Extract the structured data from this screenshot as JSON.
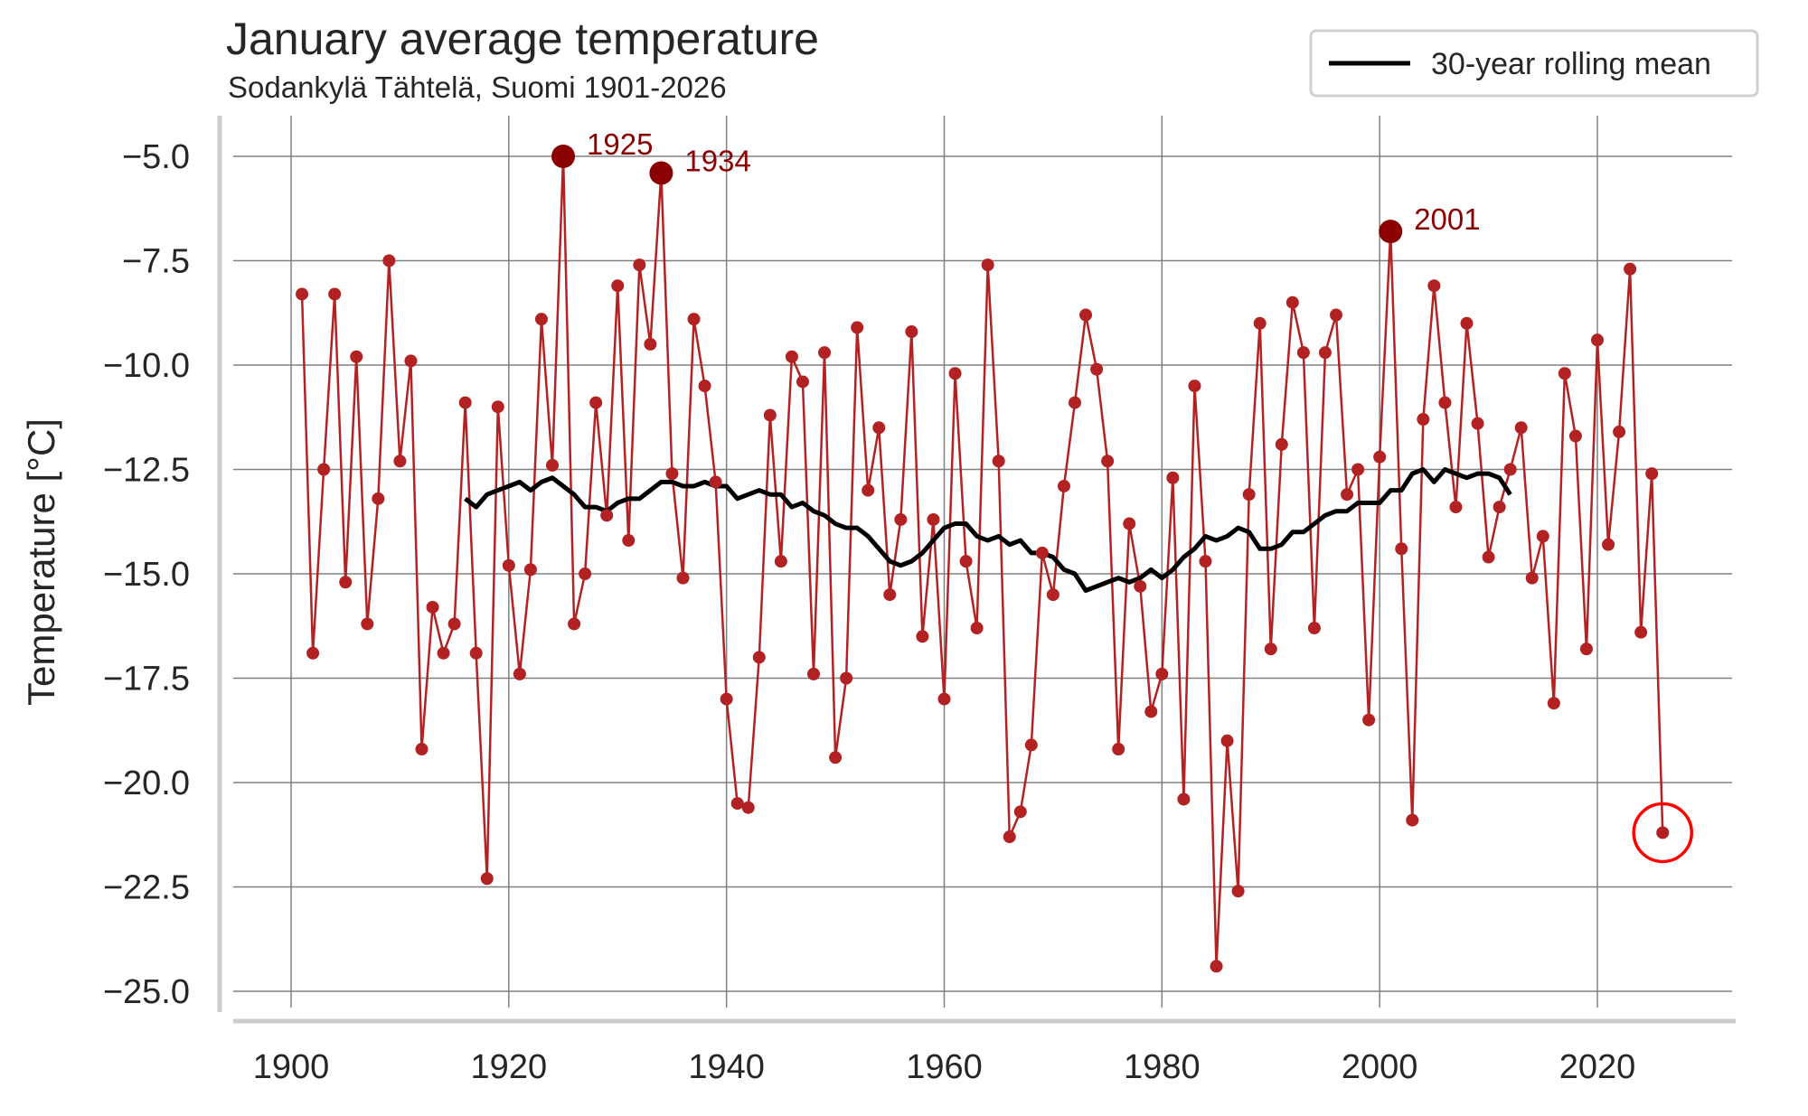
{
  "chart_data": {
    "type": "line",
    "title": "January average temperature",
    "subtitle": "Sodankylä Tähtelä, Suomi 1901-2026",
    "xlabel": "",
    "ylabel": "Temperature [°C]",
    "xlim": [
      1895,
      2032
    ],
    "ylim": [
      -25.6,
      -4.0
    ],
    "xticks": [
      1900,
      1920,
      1940,
      1960,
      1980,
      2000,
      2020
    ],
    "xtick_labels": [
      "1900",
      "1920",
      "1940",
      "1960",
      "1980",
      "2000",
      "2020"
    ],
    "yticks": [
      -5.0,
      -7.5,
      -10.0,
      -12.5,
      -15.0,
      -17.5,
      -20.0,
      -22.5,
      -25.0
    ],
    "ytick_labels": [
      "−5.0",
      "−7.5",
      "−10.0",
      "−12.5",
      "−15.0",
      "−17.5",
      "−20.0",
      "−22.5",
      "−25.0"
    ],
    "grid": true,
    "legend": {
      "placement": "top-right",
      "entries": [
        "30-year rolling mean"
      ]
    },
    "colors": {
      "series": "#b22222",
      "highlight": "#8b0000",
      "rolling": "#000000",
      "circle": "#ff0000",
      "grid": "#808080"
    },
    "series": [
      {
        "name": "January average temperature",
        "x": [
          1901,
          1902,
          1903,
          1904,
          1905,
          1906,
          1907,
          1908,
          1909,
          1910,
          1911,
          1912,
          1913,
          1914,
          1915,
          1916,
          1917,
          1918,
          1919,
          1920,
          1921,
          1922,
          1923,
          1924,
          1925,
          1926,
          1927,
          1928,
          1929,
          1930,
          1931,
          1932,
          1933,
          1934,
          1935,
          1936,
          1937,
          1938,
          1939,
          1940,
          1941,
          1942,
          1943,
          1944,
          1945,
          1946,
          1947,
          1948,
          1949,
          1950,
          1951,
          1952,
          1953,
          1954,
          1955,
          1956,
          1957,
          1958,
          1959,
          1960,
          1961,
          1962,
          1963,
          1964,
          1965,
          1966,
          1967,
          1968,
          1969,
          1970,
          1971,
          1972,
          1973,
          1974,
          1975,
          1976,
          1977,
          1978,
          1979,
          1980,
          1981,
          1982,
          1983,
          1984,
          1985,
          1986,
          1987,
          1988,
          1989,
          1990,
          1991,
          1992,
          1993,
          1994,
          1995,
          1996,
          1997,
          1998,
          1999,
          2000,
          2001,
          2002,
          2003,
          2004,
          2005,
          2006,
          2007,
          2008,
          2009,
          2010,
          2011,
          2012,
          2013,
          2014,
          2015,
          2016,
          2017,
          2018,
          2019,
          2020,
          2021,
          2022,
          2023,
          2024,
          2025,
          2026
        ],
        "values": [
          -8.3,
          -16.9,
          -12.5,
          -8.3,
          -15.2,
          -9.8,
          -16.2,
          -13.2,
          -7.5,
          -12.3,
          -9.9,
          -19.2,
          -15.8,
          -16.9,
          -16.2,
          -10.9,
          -16.9,
          -22.3,
          -11.0,
          -14.8,
          -17.4,
          -14.9,
          -8.9,
          -12.4,
          -5.0,
          -16.2,
          -15.0,
          -10.9,
          -13.6,
          -8.1,
          -14.2,
          -7.6,
          -9.5,
          -5.4,
          -12.6,
          -15.1,
          -8.9,
          -10.5,
          -12.8,
          -18.0,
          -20.5,
          -20.6,
          -17.0,
          -11.2,
          -14.7,
          -9.8,
          -10.4,
          -17.4,
          -9.7,
          -19.4,
          -17.5,
          -9.1,
          -13.0,
          -11.5,
          -15.5,
          -13.7,
          -9.2,
          -16.5,
          -13.7,
          -18.0,
          -10.2,
          -14.7,
          -16.3,
          -7.6,
          -12.3,
          -21.3,
          -20.7,
          -19.1,
          -14.5,
          -15.5,
          -12.9,
          -10.9,
          -8.8,
          -10.1,
          -12.3,
          -19.2,
          -13.8,
          -15.3,
          -18.3,
          -17.4,
          -12.7,
          -20.4,
          -10.5,
          -14.7,
          -24.4,
          -19.0,
          -22.6,
          -13.1,
          -9.0,
          -16.8,
          -11.9,
          -8.5,
          -9.7,
          -16.3,
          -9.7,
          -8.8,
          -13.1,
          -12.5,
          -18.5,
          -12.2,
          -6.8,
          -14.4,
          -20.9,
          -11.3,
          -8.1,
          -10.9,
          -13.4,
          -9.0,
          -11.4,
          -14.6,
          -13.4,
          -12.5,
          -11.5,
          -15.1,
          -14.1,
          -18.1,
          -10.2,
          -11.7,
          -16.8,
          -9.4,
          -14.3,
          -11.6,
          -7.7,
          -16.4,
          -12.6,
          -21.2
        ]
      },
      {
        "name": "30-year rolling mean",
        "x": [
          1916,
          1917,
          1918,
          1919,
          1920,
          1921,
          1922,
          1923,
          1924,
          1925,
          1926,
          1927,
          1928,
          1929,
          1930,
          1931,
          1932,
          1933,
          1934,
          1935,
          1936,
          1937,
          1938,
          1939,
          1940,
          1941,
          1942,
          1943,
          1944,
          1945,
          1946,
          1947,
          1948,
          1949,
          1950,
          1951,
          1952,
          1953,
          1954,
          1955,
          1956,
          1957,
          1958,
          1959,
          1960,
          1961,
          1962,
          1963,
          1964,
          1965,
          1966,
          1967,
          1968,
          1969,
          1970,
          1971,
          1972,
          1973,
          1974,
          1975,
          1976,
          1977,
          1978,
          1979,
          1980,
          1981,
          1982,
          1983,
          1984,
          1985,
          1986,
          1987,
          1988,
          1989,
          1990,
          1991,
          1992,
          1993,
          1994,
          1995,
          1996,
          1997,
          1998,
          1999,
          2000,
          2001,
          2002,
          2003,
          2004,
          2005,
          2006,
          2007,
          2008,
          2009,
          2010,
          2011,
          2012
        ],
        "values": [
          -13.2,
          -13.4,
          -13.1,
          -13.0,
          -12.9,
          -12.8,
          -13.0,
          -12.8,
          -12.7,
          -12.9,
          -13.1,
          -13.4,
          -13.4,
          -13.5,
          -13.3,
          -13.2,
          -13.2,
          -13.0,
          -12.8,
          -12.8,
          -12.9,
          -12.9,
          -12.8,
          -12.9,
          -12.9,
          -13.2,
          -13.1,
          -13.0,
          -13.1,
          -13.1,
          -13.4,
          -13.3,
          -13.5,
          -13.6,
          -13.8,
          -13.9,
          -13.9,
          -14.1,
          -14.4,
          -14.7,
          -14.8,
          -14.7,
          -14.5,
          -14.2,
          -13.9,
          -13.8,
          -13.8,
          -14.1,
          -14.2,
          -14.1,
          -14.3,
          -14.2,
          -14.5,
          -14.5,
          -14.6,
          -14.9,
          -15.0,
          -15.4,
          -15.3,
          -15.2,
          -15.1,
          -15.2,
          -15.1,
          -14.9,
          -15.1,
          -14.9,
          -14.6,
          -14.4,
          -14.1,
          -14.2,
          -14.1,
          -13.9,
          -14.0,
          -14.4,
          -14.4,
          -14.3,
          -14.0,
          -14.0,
          -13.8,
          -13.6,
          -13.5,
          -13.5,
          -13.3,
          -13.3,
          -13.3,
          -13.0,
          -13.0,
          -12.6,
          -12.5,
          -12.8,
          -12.5,
          -12.6,
          -12.7,
          -12.6,
          -12.6,
          -12.7,
          -13.1
        ]
      }
    ],
    "annotations": [
      {
        "year": 1925,
        "value": -5.0,
        "label": "1925"
      },
      {
        "year": 1934,
        "value": -5.4,
        "label": "1934"
      },
      {
        "year": 2001,
        "value": -6.8,
        "label": "2001"
      }
    ],
    "circled_point": {
      "year": 2026,
      "value": -21.2
    }
  }
}
